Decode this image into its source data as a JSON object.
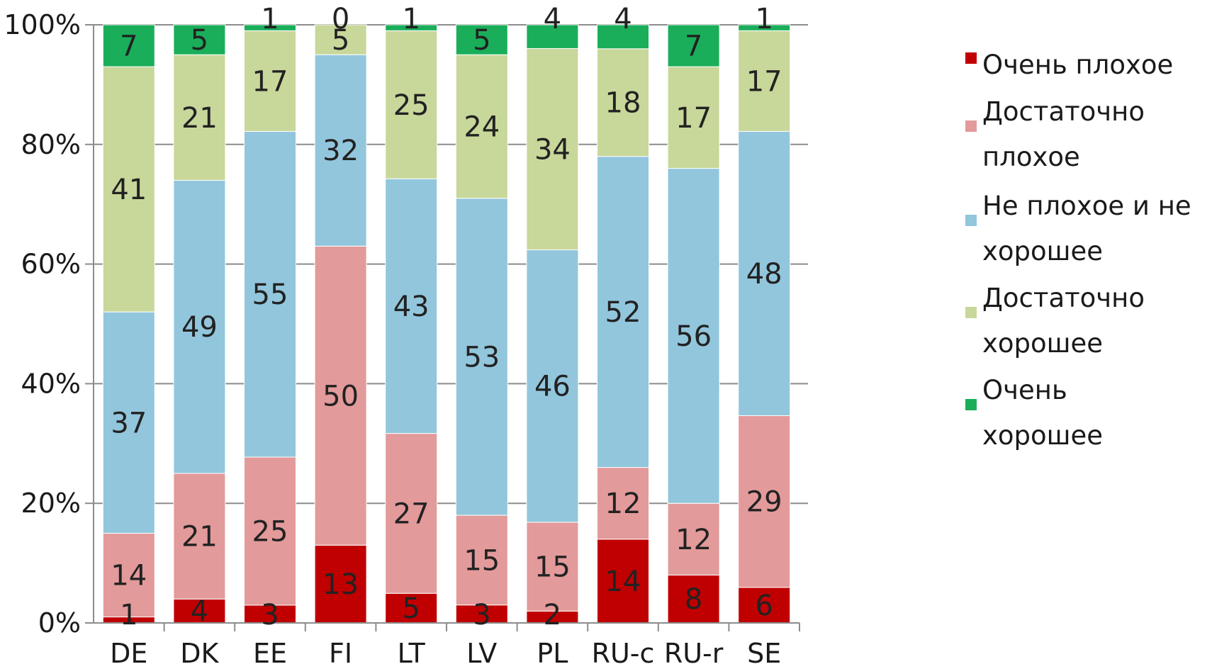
{
  "chart_data": {
    "type": "bar",
    "stacked": true,
    "normalized": true,
    "categories": [
      "DE",
      "DK",
      "EE",
      "FI",
      "LT",
      "LV",
      "PL",
      "RU-c",
      "RU-r",
      "SE"
    ],
    "series": [
      {
        "name": "Очень плохое",
        "color": "#c00000",
        "values": [
          1,
          4,
          3,
          13,
          5,
          3,
          2,
          14,
          8,
          6
        ]
      },
      {
        "name": "Достаточно плохое",
        "color": "#e39a9a",
        "values": [
          14,
          21,
          25,
          50,
          27,
          15,
          15,
          12,
          12,
          29
        ]
      },
      {
        "name": "Не плохое и не хорошее",
        "color": "#92c6dc",
        "values": [
          37,
          49,
          55,
          32,
          43,
          53,
          46,
          52,
          56,
          48
        ]
      },
      {
        "name": "Достаточно хорошее",
        "color": "#c8d79a",
        "values": [
          41,
          21,
          17,
          5,
          25,
          24,
          34,
          18,
          17,
          17
        ]
      },
      {
        "name": "Очень хорошее",
        "color": "#1aae5a",
        "values": [
          7,
          5,
          1,
          0,
          1,
          5,
          4,
          4,
          7,
          1
        ]
      }
    ],
    "y_ticks": [
      "0%",
      "20%",
      "40%",
      "60%",
      "80%",
      "100%"
    ],
    "ylim": [
      0,
      100
    ],
    "grid": true,
    "legend": "right",
    "data_labels": true
  }
}
